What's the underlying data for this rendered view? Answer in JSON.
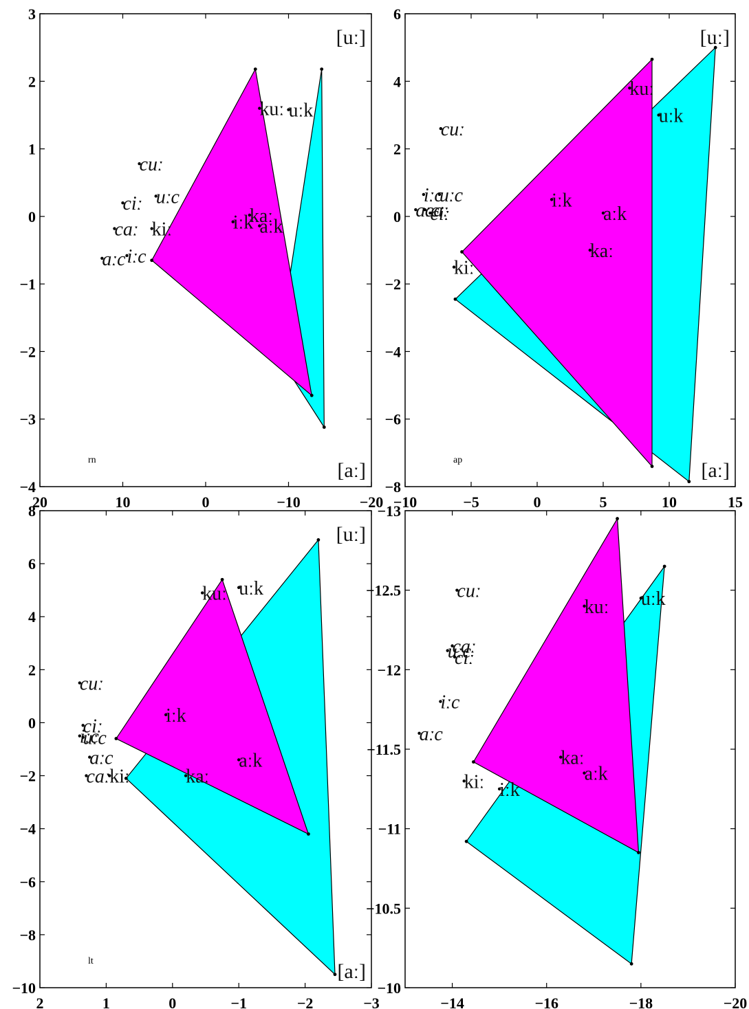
{
  "chart_data": [
    {
      "type": "scatter",
      "panel_label": "rn",
      "xlim": [
        20,
        -20
      ],
      "ylim": [
        -4,
        3
      ],
      "x_ticks": [
        20,
        10,
        0,
        -10,
        -20
      ],
      "y_ticks": [
        3,
        2,
        1,
        0,
        -1,
        -2,
        -3,
        -4
      ],
      "x_tick_labels": [
        "20",
        "10",
        "0",
        "−10",
        "−20"
      ],
      "y_tick_labels": [
        "3",
        "2",
        "1",
        "0",
        "−1",
        "−2",
        "−3",
        "−4"
      ],
      "corner_labels": {
        "top": "[uː]",
        "bottom": "[aː]"
      },
      "triangles": [
        {
          "color": "#00ffff",
          "vertices": [
            [
              -14,
              2.18
            ],
            [
              -14.3,
              -3.12
            ],
            [
              -8.7,
              -2.05
            ]
          ]
        },
        {
          "color": "#ff00ff",
          "vertices": [
            [
              -6,
              2.18
            ],
            [
              -12.8,
              -2.65
            ],
            [
              6.5,
              -0.65
            ]
          ]
        }
      ],
      "points": [
        {
          "label": "cuː",
          "italic": true,
          "x": 8,
          "y": 0.78
        },
        {
          "label": "uːc",
          "italic": true,
          "x": 6,
          "y": 0.3
        },
        {
          "label": "ciː",
          "italic": true,
          "x": 10,
          "y": 0.2
        },
        {
          "label": "caː",
          "italic": true,
          "x": 11,
          "y": -0.18
        },
        {
          "label": "kiː",
          "italic": false,
          "x": 6.5,
          "y": -0.18
        },
        {
          "label": "aːc",
          "italic": true,
          "x": 12.5,
          "y": -0.62
        },
        {
          "label": "iːc",
          "italic": true,
          "x": 9.5,
          "y": -0.58
        },
        {
          "label": "kuː",
          "italic": false,
          "x": -6.5,
          "y": 1.6
        },
        {
          "label": "uːk",
          "italic": false,
          "x": -10,
          "y": 1.58
        },
        {
          "label": "iːk",
          "italic": false,
          "x": -3.3,
          "y": -0.08
        },
        {
          "label": "kaː",
          "italic": false,
          "x": -5.3,
          "y": 0.02
        },
        {
          "label": "aːk",
          "italic": false,
          "x": -6.5,
          "y": -0.14
        }
      ]
    },
    {
      "type": "scatter",
      "panel_label": "ap",
      "xlim": [
        -10,
        15
      ],
      "ylim": [
        -8,
        6
      ],
      "x_ticks": [
        -10,
        -5,
        0,
        5,
        10,
        15
      ],
      "y_ticks": [
        6,
        4,
        2,
        0,
        -2,
        -4,
        -6,
        -8
      ],
      "x_tick_labels": [
        "−10",
        "−5",
        "0",
        "5",
        "10",
        "15"
      ],
      "y_tick_labels": [
        "6",
        "4",
        "2",
        "0",
        "−2",
        "−4",
        "−6",
        "−8"
      ],
      "corner_labels": {
        "top": "[uː]",
        "bottom": "[aː]"
      },
      "triangles": [
        {
          "color": "#00ffff",
          "vertices": [
            [
              13.5,
              5
            ],
            [
              11.5,
              -7.85
            ],
            [
              -6.2,
              -2.45
            ]
          ]
        },
        {
          "color": "#ff00ff",
          "vertices": [
            [
              8.7,
              4.65
            ],
            [
              8.7,
              -7.4
            ],
            [
              -5.7,
              -1.05
            ]
          ]
        }
      ],
      "points": [
        {
          "label": "cuː",
          "italic": true,
          "x": -7.3,
          "y": 2.6
        },
        {
          "label": "iːc",
          "italic": true,
          "x": -8.6,
          "y": 0.65
        },
        {
          "label": "uːc",
          "italic": true,
          "x": -7.4,
          "y": 0.65
        },
        {
          "label": "aːc",
          "italic": true,
          "x": -9.2,
          "y": 0.2
        },
        {
          "label": "caː",
          "italic": true,
          "x": -8.5,
          "y": 0.2
        },
        {
          "label": "ciː",
          "italic": true,
          "x": -8.1,
          "y": 0.1
        },
        {
          "label": "kiː",
          "italic": false,
          "x": -6.3,
          "y": -1.5
        },
        {
          "label": "kuː",
          "italic": false,
          "x": 7,
          "y": 3.8
        },
        {
          "label": "uːk",
          "italic": false,
          "x": 9.2,
          "y": 3.0
        },
        {
          "label": "iːk",
          "italic": false,
          "x": 1.1,
          "y": 0.5
        },
        {
          "label": "aːk",
          "italic": false,
          "x": 5,
          "y": 0.1
        },
        {
          "label": "kaː",
          "italic": false,
          "x": 4,
          "y": -1
        }
      ]
    },
    {
      "type": "scatter",
      "panel_label": "lt",
      "xlim": [
        2,
        -3
      ],
      "ylim": [
        -10,
        8
      ],
      "x_ticks": [
        2,
        1,
        0,
        -1,
        -2,
        -3
      ],
      "y_ticks": [
        8,
        6,
        4,
        2,
        0,
        -2,
        -4,
        -6,
        -8,
        -10
      ],
      "x_tick_labels": [
        "2",
        "1",
        "0",
        "−1",
        "−2",
        "−3"
      ],
      "y_tick_labels": [
        "8",
        "6",
        "4",
        "2",
        "0",
        "−2",
        "−4",
        "−6",
        "−8",
        "−10"
      ],
      "corner_labels": {
        "top": "[uː]",
        "bottom": "[aː]"
      },
      "triangles": [
        {
          "color": "#00ffff",
          "vertices": [
            [
              -2.2,
              6.9
            ],
            [
              -2.45,
              -9.5
            ],
            [
              0.7,
              -2.1
            ]
          ]
        },
        {
          "color": "#ff00ff",
          "vertices": [
            [
              -0.75,
              5.4
            ],
            [
              -2.05,
              -4.2
            ],
            [
              0.85,
              -0.6
            ]
          ]
        }
      ],
      "points": [
        {
          "label": "cuː",
          "italic": true,
          "x": 1.4,
          "y": 1.5
        },
        {
          "label": "ciː",
          "italic": true,
          "x": 1.35,
          "y": -0.1
        },
        {
          "label": "iːc",
          "italic": true,
          "x": 1.4,
          "y": -0.5
        },
        {
          "label": "uːc",
          "italic": true,
          "x": 1.35,
          "y": -0.55
        },
        {
          "label": "aːc",
          "italic": true,
          "x": 1.25,
          "y": -1.3
        },
        {
          "label": "caː",
          "italic": true,
          "x": 1.3,
          "y": -2.0
        },
        {
          "label": "kiː",
          "italic": false,
          "x": 0.95,
          "y": -2.0
        },
        {
          "label": "kuː",
          "italic": false,
          "x": -0.45,
          "y": 4.9
        },
        {
          "label": "uːk",
          "italic": false,
          "x": -1.0,
          "y": 5.1
        },
        {
          "label": "iːk",
          "italic": false,
          "x": 0.1,
          "y": 0.3
        },
        {
          "label": "aːk",
          "italic": false,
          "x": -1.0,
          "y": -1.4
        },
        {
          "label": "kaː",
          "italic": false,
          "x": -0.2,
          "y": -2.0
        }
      ]
    },
    {
      "type": "scatter",
      "panel_label": "",
      "xlim": [
        -13,
        -20
      ],
      "ylim": [
        -10,
        -13
      ],
      "x_ticks": [
        -14,
        -16,
        -18,
        -20
      ],
      "y_ticks": [
        -13,
        -12.5,
        -12,
        -11.5,
        -11,
        -10.5,
        -10
      ],
      "x_tick_labels": [
        "−14",
        "−16",
        "−18",
        "−20"
      ],
      "y_tick_labels": [
        "−13",
        "−12.5",
        "−12",
        "−11.5",
        "−11",
        "−10.5",
        "−10"
      ],
      "corner_labels": {
        "top": "",
        "bottom": ""
      },
      "triangles": [
        {
          "color": "#00ffff",
          "vertices": [
            [
              -18.5,
              -12.65
            ],
            [
              -17.8,
              -10.15
            ],
            [
              -14.3,
              -10.92
            ]
          ]
        },
        {
          "color": "#ff00ff",
          "vertices": [
            [
              -17.5,
              -12.95
            ],
            [
              -17.95,
              -10.85
            ],
            [
              -14.45,
              -11.42
            ]
          ]
        }
      ],
      "points": [
        {
          "label": "cuː",
          "italic": true,
          "x": -14.1,
          "y": -12.5
        },
        {
          "label": "caː",
          "italic": true,
          "x": -14.0,
          "y": -12.15
        },
        {
          "label": "uːc",
          "italic": true,
          "x": -13.9,
          "y": -12.12
        },
        {
          "label": "ciː",
          "italic": true,
          "x": -14.05,
          "y": -12.08
        },
        {
          "label": "iːc",
          "italic": true,
          "x": -13.75,
          "y": -11.8
        },
        {
          "label": "aːc",
          "italic": true,
          "x": -13.3,
          "y": -11.6
        },
        {
          "label": "kiː",
          "italic": false,
          "x": -14.25,
          "y": -11.3
        },
        {
          "label": "kuː",
          "italic": false,
          "x": -16.8,
          "y": -12.4
        },
        {
          "label": "uːk",
          "italic": false,
          "x": -18.0,
          "y": -12.45
        },
        {
          "label": "kaː",
          "italic": false,
          "x": -16.3,
          "y": -11.45
        },
        {
          "label": "aːk",
          "italic": false,
          "x": -16.8,
          "y": -11.35
        },
        {
          "label": "iːk",
          "italic": false,
          "x": -15.0,
          "y": -11.25
        }
      ]
    }
  ]
}
